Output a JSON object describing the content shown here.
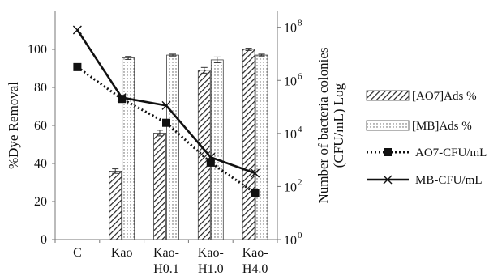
{
  "chart_data": {
    "type": "bar",
    "categories": [
      [
        "C"
      ],
      [
        "Kao"
      ],
      [
        "Kao-",
        "H0.1"
      ],
      [
        "Kao-",
        "H1.0"
      ],
      [
        "Kao-",
        "H4.0"
      ]
    ],
    "ylabel": "%Dye Removal",
    "ylim": [
      0,
      120
    ],
    "yticks": [
      0,
      20,
      40,
      60,
      80,
      100
    ],
    "y2label_line1": "Number of bacteria colonies",
    "y2label_line2": "(CFU/mL) Log",
    "y2_base": "10",
    "y2_exponents": [
      "0",
      "2",
      "4",
      "6",
      "8"
    ],
    "y2lim_log10": [
      0,
      8.6
    ],
    "series": [
      {
        "name": "[AO7]Ads %",
        "kind": "bar",
        "pattern": "diagonal-hatch",
        "values": [
          null,
          36,
          56,
          89,
          100
        ],
        "errors": [
          null,
          1.2,
          1.5,
          1.5,
          0.6
        ]
      },
      {
        "name": "[MB]Ads %",
        "kind": "bar",
        "pattern": "dots",
        "values": [
          null,
          95.5,
          97,
          94.5,
          97
        ],
        "errors": [
          null,
          0.8,
          0.5,
          1.5,
          0.5
        ]
      },
      {
        "name": "AO7-CFU/mL",
        "kind": "line",
        "axis": "right-log10",
        "line_style": "dotted",
        "marker": "square",
        "values_log10": [
          6.5,
          5.3,
          4.4,
          2.9,
          1.75
        ]
      },
      {
        "name": "MB-CFU/mL",
        "kind": "line",
        "axis": "right-log10",
        "line_style": "solid",
        "marker": "x",
        "values_log10": [
          7.9,
          5.35,
          5.05,
          3.1,
          2.5
        ]
      }
    ],
    "legend_placement": "right",
    "grid": false
  }
}
